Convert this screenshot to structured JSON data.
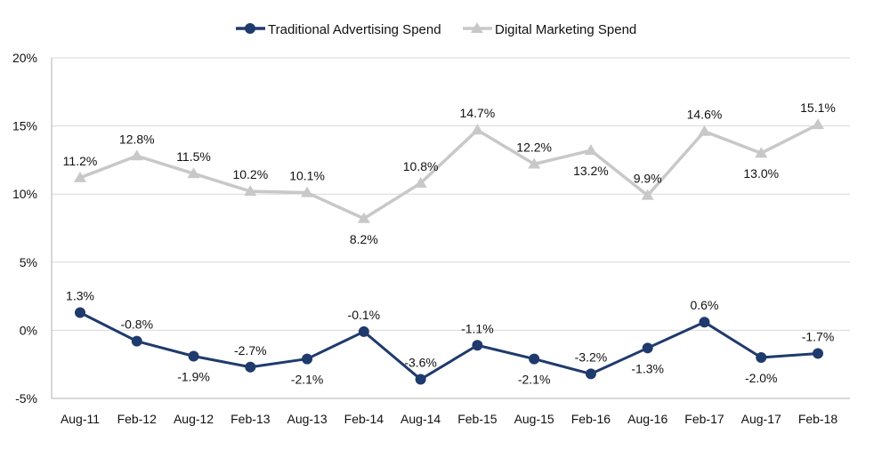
{
  "chart_data": {
    "type": "line",
    "categories": [
      "Aug-11",
      "Feb-12",
      "Aug-12",
      "Feb-13",
      "Aug-13",
      "Feb-14",
      "Aug-14",
      "Feb-15",
      "Aug-15",
      "Feb-16",
      "Aug-16",
      "Feb-17",
      "Aug-17",
      "Feb-18"
    ],
    "series": [
      {
        "name": "Traditional Advertising Spend",
        "color": "#1f3a6d",
        "marker": "circle",
        "values": [
          1.3,
          -0.8,
          -1.9,
          -2.7,
          -2.1,
          -0.1,
          -3.6,
          -1.1,
          -2.1,
          -3.2,
          -1.3,
          0.6,
          -2.0,
          -1.7
        ],
        "labels": [
          "1.3%",
          "-0.8%",
          "-1.9%",
          "-2.7%",
          "-2.1%",
          "-0.1%",
          "-3.6%",
          "-1.1%",
          "-2.1%",
          "-3.2%",
          "-1.3%",
          "0.6%",
          "-2.0%",
          "-1.7%"
        ],
        "label_position": [
          "above",
          "above",
          "below",
          "above",
          "below",
          "above",
          "above",
          "above",
          "below",
          "above",
          "below",
          "above",
          "below",
          "above"
        ]
      },
      {
        "name": "Digital Marketing Spend",
        "color": "#c8c8c8",
        "marker": "triangle",
        "values": [
          11.2,
          12.8,
          11.5,
          10.2,
          10.1,
          8.2,
          10.8,
          14.7,
          12.2,
          13.2,
          9.9,
          14.6,
          13.0,
          15.1
        ],
        "labels": [
          "11.2%",
          "12.8%",
          "11.5%",
          "10.2%",
          "10.1%",
          "8.2%",
          "10.8%",
          "14.7%",
          "12.2%",
          "13.2%",
          "9.9%",
          "14.6%",
          "13.0%",
          "15.1%"
        ],
        "label_position": [
          "above",
          "above",
          "above",
          "above",
          "above",
          "below",
          "above",
          "above",
          "above",
          "below",
          "above",
          "above",
          "below",
          "above"
        ]
      }
    ],
    "ylim": [
      -5,
      20
    ],
    "yticks": [
      -5,
      0,
      5,
      10,
      15,
      20
    ],
    "ytick_labels": [
      "-5%",
      "0%",
      "5%",
      "10%",
      "15%",
      "20%"
    ],
    "grid": true,
    "legend_placement": "top-center",
    "xlabel": "",
    "ylabel": "",
    "title": ""
  }
}
